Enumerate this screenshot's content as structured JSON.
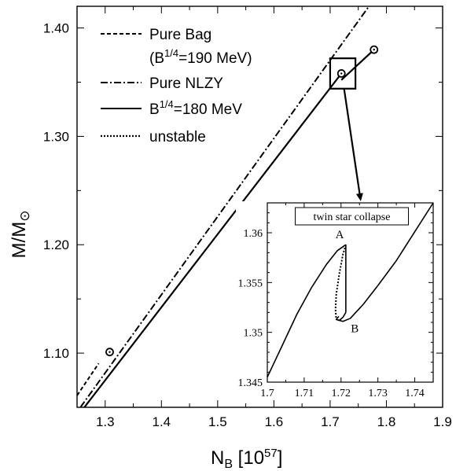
{
  "chart_data": {
    "type": "line",
    "xlabel": "N_B [10^57]",
    "xlabel_main": "N",
    "xlabel_sub": "B",
    "xlabel_unit": " [10",
    "xlabel_exp": "57",
    "xlabel_close": "]",
    "ylabel_main": "M/M",
    "ylabel_sub": "⊙",
    "xlim": [
      1.25,
      1.9
    ],
    "ylim": [
      1.05,
      1.42
    ],
    "xticks": [
      "1.3",
      "1.4",
      "1.5",
      "1.6",
      "1.7",
      "1.8",
      "1.9"
    ],
    "yticks": [
      "1.10",
      "1.20",
      "1.30",
      "1.40"
    ],
    "legend": [
      {
        "style": "dashed",
        "text": "Pure Bag"
      },
      {
        "style": "none",
        "text": "(B^1/4=190 MeV)"
      },
      {
        "style": "dashdot",
        "text": "Pure NLZY"
      },
      {
        "style": "solid",
        "text": "B^1/4=180 MeV"
      },
      {
        "style": "dotted",
        "text": "unstable"
      }
    ],
    "legend_text": {
      "bag": "Pure Bag",
      "bag_paren_open": "(B",
      "bag_exp": "1/4",
      "bag_rest": "=190 MeV)",
      "nlzy": "Pure NLZY",
      "b180_prefix": "B",
      "b180_exp": "1/4",
      "b180_rest": "=180 MeV",
      "unstable": "unstable"
    },
    "series": [
      {
        "name": "Pure Bag",
        "style": "dashed",
        "x": [
          1.25,
          1.2885
        ],
        "y": [
          1.0609,
          1.0905
        ]
      },
      {
        "name": "Pure NLZY",
        "style": "dashdot",
        "x": [
          1.256,
          1.769
        ],
        "y": [
          1.05,
          1.42
        ]
      },
      {
        "name": "B^1/4=180 MeV",
        "style": "solid",
        "x": [
          1.263,
          1.72
        ],
        "y": [
          1.05,
          1.358
        ]
      },
      {
        "name": "B^1/4=180 MeV",
        "style": "solid",
        "x": [
          1.72,
          1.778
        ],
        "y": [
          1.352,
          1.38
        ]
      }
    ],
    "markers": [
      {
        "x": 1.308,
        "y": 1.101
      },
      {
        "x": 1.72,
        "y": 1.358
      },
      {
        "x": 1.778,
        "y": 1.38
      }
    ],
    "zoom_box": {
      "x": [
        1.7,
        1.745
      ],
      "y": [
        1.344,
        1.372
      ]
    },
    "inset": {
      "title": "twin star collapse",
      "xlim": [
        1.7,
        1.745
      ],
      "ylim": [
        1.345,
        1.363
      ],
      "xticks": [
        "1.7",
        "1.71",
        "1.72",
        "1.73",
        "1.74"
      ],
      "yticks": [
        "1.345",
        "1.35",
        "1.355",
        "1.36"
      ],
      "labels": [
        {
          "text": "A",
          "x": 1.7206,
          "y": 1.3593
        },
        {
          "text": "B",
          "x": 1.7218,
          "y": 1.3508
        }
      ],
      "series": [
        {
          "style": "solid",
          "x": [
            1.7,
            1.7042,
            1.708,
            1.712,
            1.716,
            1.719,
            1.7213
          ],
          "y": [
            1.3455,
            1.3488,
            1.3518,
            1.3545,
            1.3568,
            1.3582,
            1.3588
          ]
        },
        {
          "style": "solid",
          "x": [
            1.7213,
            1.7213
          ],
          "y": [
            1.3588,
            1.352
          ]
        },
        {
          "style": "solid",
          "x": [
            1.7213,
            1.7205,
            1.7195,
            1.7187,
            1.7194
          ],
          "y": [
            1.352,
            1.3515,
            1.3512,
            1.3513,
            1.3516
          ]
        },
        {
          "style": "dotted",
          "x": [
            1.7213,
            1.7205,
            1.7195,
            1.7187,
            1.7185,
            1.7187
          ],
          "y": [
            1.3588,
            1.3578,
            1.3558,
            1.3538,
            1.3523,
            1.3513
          ]
        },
        {
          "style": "solid",
          "x": [
            1.7187,
            1.7205,
            1.7225,
            1.726,
            1.73,
            1.735,
            1.74,
            1.745
          ],
          "y": [
            1.3513,
            1.3511,
            1.3514,
            1.3528,
            1.3547,
            1.3572,
            1.3601,
            1.363
          ]
        }
      ]
    }
  }
}
